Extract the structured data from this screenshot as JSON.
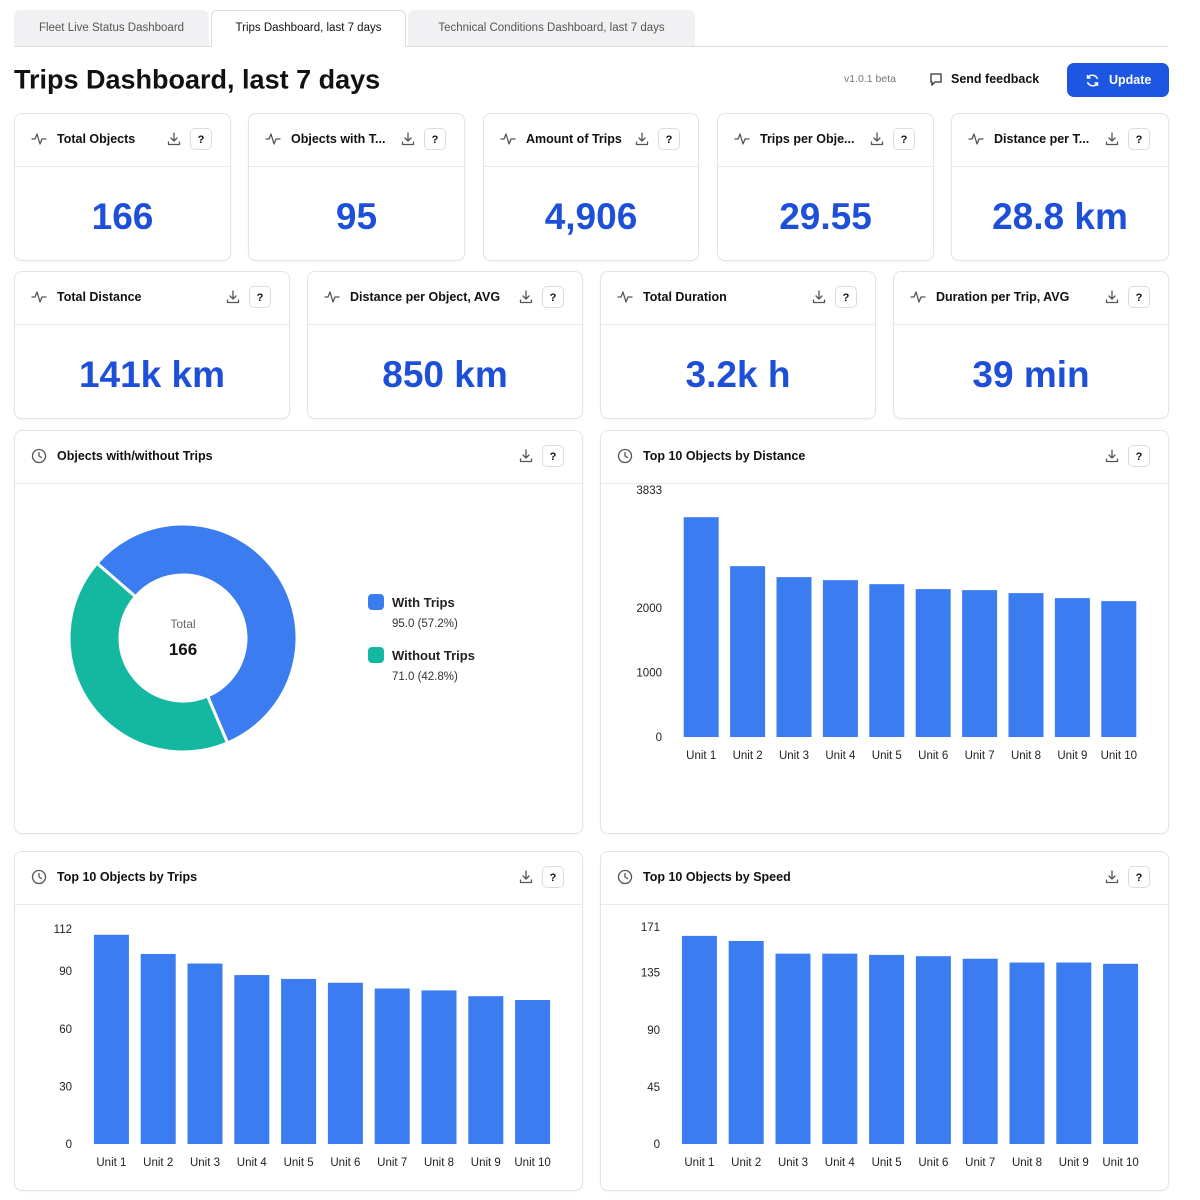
{
  "tabs": [
    "Fleet Live Status Dashboard",
    "Trips Dashboard, last 7 days",
    "Technical Conditions Dashboard, last 7 days"
  ],
  "header": {
    "title": "Trips Dashboard, last 7 days",
    "version": "v1.0.1 beta",
    "feedback": "Send feedback",
    "update": "Update"
  },
  "help": "?",
  "kpis": [
    {
      "label": "Total Objects",
      "value": "166"
    },
    {
      "label": "Objects with T...",
      "value": "95"
    },
    {
      "label": "Amount of Trips",
      "value": "4,906"
    },
    {
      "label": "Trips per Obje...",
      "value": "29.55"
    },
    {
      "label": "Distance per T...",
      "value": "28.8 km"
    },
    {
      "label": "Total Distance",
      "value": "141k km"
    },
    {
      "label": "Distance per Object, AVG",
      "value": "850 km"
    },
    {
      "label": "Total Duration",
      "value": "3.2k h"
    },
    {
      "label": "Duration per Trip, AVG",
      "value": "39 min"
    }
  ],
  "chart_data": [
    {
      "type": "pie",
      "title": "Objects with/without Trips",
      "center_label": "Total",
      "center_value": 166,
      "categories": [
        "With Trips",
        "Without Trips"
      ],
      "values": [
        95,
        71
      ],
      "value_labels": [
        "95.0 (57.2%)",
        "71.0 (42.8%)"
      ],
      "colors": [
        "#3b7cf0",
        "#14b8a0"
      ]
    },
    {
      "type": "bar",
      "title": "Top 10 Objects by Distance",
      "color": "#3b7cf0",
      "categories": [
        "Unit 1",
        "Unit 2",
        "Unit 3",
        "Unit 4",
        "Unit 5",
        "Unit 6",
        "Unit 7",
        "Unit 8",
        "Unit 9",
        "Unit 10"
      ],
      "values": [
        3411,
        2651,
        2481,
        2434,
        2372,
        2295,
        2279,
        2233,
        2155,
        2109
      ],
      "ylim": [
        0,
        3833
      ],
      "yticks": [
        0,
        1000,
        2000,
        3833
      ]
    },
    {
      "type": "bar",
      "title": "Top 10 Objects by Trips",
      "color": "#3b7cf0",
      "categories": [
        "Unit 1",
        "Unit 2",
        "Unit 3",
        "Unit 4",
        "Unit 5",
        "Unit 6",
        "Unit 7",
        "Unit 8",
        "Unit 9",
        "Unit 10"
      ],
      "values": [
        109,
        99,
        94,
        88,
        86,
        84,
        81,
        80,
        77,
        75
      ],
      "ylim": [
        0,
        112
      ],
      "yticks": [
        0,
        30,
        60,
        90,
        112
      ]
    },
    {
      "type": "bar",
      "title": "Top 10 Objects by Speed",
      "color": "#3b7cf0",
      "categories": [
        "Unit 1",
        "Unit 2",
        "Unit 3",
        "Unit 4",
        "Unit 5",
        "Unit 6",
        "Unit 7",
        "Unit 8",
        "Unit 9",
        "Unit 10"
      ],
      "values": [
        164,
        160,
        150,
        150,
        149,
        148,
        146,
        143,
        143,
        142
      ],
      "ylim": [
        0,
        171
      ],
      "yticks": [
        0,
        45,
        90,
        135,
        171
      ]
    }
  ]
}
